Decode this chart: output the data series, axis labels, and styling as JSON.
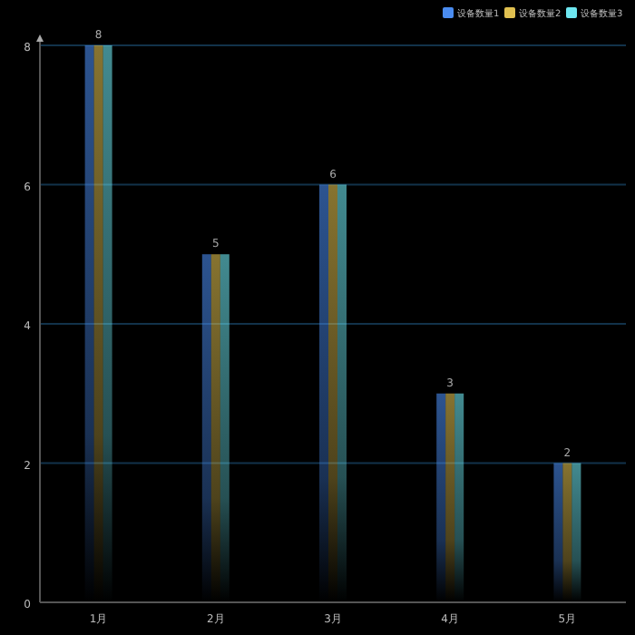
{
  "chart_data": {
    "type": "bar",
    "categories": [
      "1月",
      "2月",
      "3月",
      "4月",
      "5月"
    ],
    "series": [
      {
        "name": "设备数量1",
        "color": "#4a8cf0",
        "values": [
          8,
          5,
          6,
          3,
          2
        ]
      },
      {
        "name": "设备数量2",
        "color": "#e0c050",
        "values": [
          8,
          5,
          6,
          3,
          2
        ],
        "value_labels": [
          "8",
          "5",
          "6",
          "3",
          "2"
        ]
      },
      {
        "name": "设备数量3",
        "color": "#6ee6f0",
        "values": [
          8,
          5,
          6,
          3,
          2
        ]
      }
    ],
    "ylim": [
      0,
      8
    ],
    "yticks": [
      0,
      2,
      4,
      6,
      8
    ],
    "grid": "y",
    "legend": "top right"
  }
}
